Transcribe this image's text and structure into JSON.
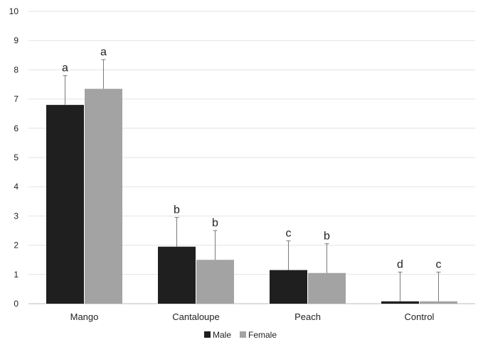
{
  "chart_data": {
    "type": "bar",
    "title": "",
    "xlabel": "",
    "ylabel": "",
    "ylim": [
      0,
      10
    ],
    "yticks": [
      0,
      1,
      2,
      3,
      4,
      5,
      6,
      7,
      8,
      9,
      10
    ],
    "grid": true,
    "legend_position": "bottom",
    "categories": [
      "Mango",
      "Cantaloupe",
      "Peach",
      "Control"
    ],
    "series": [
      {
        "name": "Male",
        "color": "#1f1f1f",
        "values": [
          6.8,
          1.95,
          1.15,
          0.08
        ],
        "errors": [
          1.0,
          1.0,
          1.0,
          1.0
        ],
        "labels": [
          "a",
          "b",
          "c",
          "d"
        ]
      },
      {
        "name": "Female",
        "color": "#a3a3a3",
        "values": [
          7.35,
          1.5,
          1.05,
          0.08
        ],
        "errors": [
          1.0,
          1.0,
          1.0,
          1.0
        ],
        "labels": [
          "a",
          "b",
          "b",
          "c"
        ]
      }
    ]
  }
}
